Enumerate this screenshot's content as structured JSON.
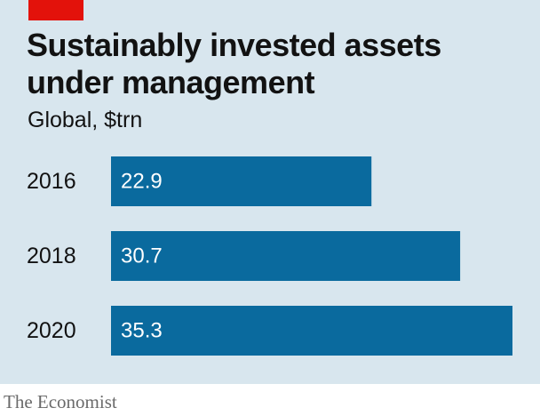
{
  "chart_data": {
    "type": "bar",
    "orientation": "horizontal",
    "title": "Sustainably invested assets under management",
    "subtitle": "Global, $trn",
    "categories": [
      "2016",
      "2018",
      "2020"
    ],
    "values": [
      22.9,
      30.7,
      35.3
    ],
    "data_labels": [
      "22.9",
      "30.7",
      "35.3"
    ],
    "xlim": [
      0,
      35.3
    ],
    "grid": false,
    "legend": "none",
    "colors": {
      "bar": "#0a6a9e",
      "background": "#d8e6ee",
      "accent": "#e3120b",
      "label_inside": "#ffffff",
      "text": "#121212"
    }
  },
  "source": "The Economist"
}
